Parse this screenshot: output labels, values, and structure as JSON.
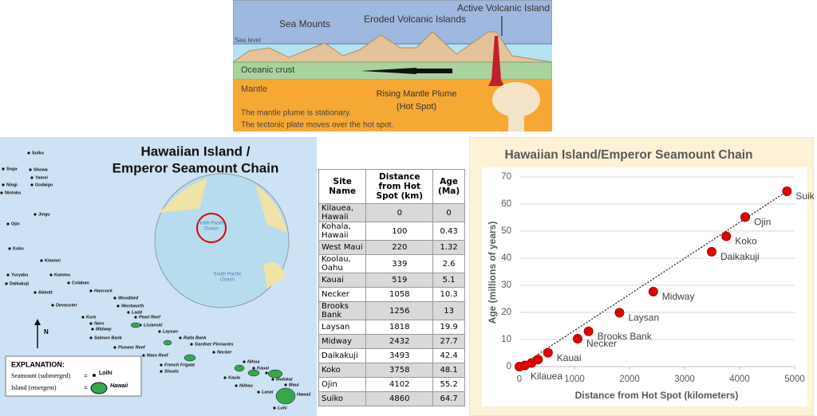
{
  "diagram": {
    "active_volcanic_island": "Active Volcanic Island",
    "sea_mounts": "Sea Mounts",
    "eroded_islands": "Eroded Volcanic Islands",
    "sea_level": "Sea level",
    "oceanic_crust": "Oceanic crust",
    "mantle": "Mantle",
    "plume": [
      "Rising Mantle Plume",
      "(Hot Spot)"
    ],
    "notes": [
      "The mantle plume is stationary.",
      "The tectonic plate moves over the hot spot."
    ]
  },
  "map": {
    "title": [
      "Hawaiian Island /",
      "Emperor Seamount Chain"
    ],
    "labels": [
      "Suiko",
      "Soga",
      "Showa",
      "Yamei",
      "Ningi",
      "Godaigo",
      "Nintoku",
      "Jingu",
      "Ojin",
      "Koko",
      "Kimmei",
      "Kammu",
      "Yuryaku",
      "Daikakuji",
      "Colahan",
      "Abbott",
      "Hancock",
      "Woodlard",
      "Wentworth",
      "Ladd",
      "Pearl Reef",
      "Kure",
      "Nero",
      "Lisianski",
      "Midway",
      "Salmon Bank",
      "Laysan",
      "Raita Bank",
      "Pioneer Reef",
      "Gardner Pinnacles",
      "Maro Reef",
      "Necker",
      "French Frigate",
      "Shoals",
      "Nihoa",
      "Kauai",
      "Oahu",
      "Kaula",
      "Niihau",
      "Molokai",
      "Maui",
      "Lanai",
      "Hawaii",
      "Lohi",
      "Deveuster"
    ],
    "north": "N",
    "globe_labels": [
      "North Pacific",
      "Ocean",
      "South Pacific",
      "Ocean"
    ],
    "explanation": {
      "title": "EXPLANATION:",
      "seamount": "Seamount (submerged)",
      "island": "Island (emergent)",
      "equals": "=",
      "seamount_example": "Loihi",
      "island_example": "Hawaii"
    }
  },
  "table": {
    "headers": [
      "Site Name",
      "Distance from Hot Spot (km)",
      "Age (Ma)"
    ],
    "rows": [
      [
        "Kilauea, Hawaii",
        "0",
        "0"
      ],
      [
        "Kohala, Hawaii",
        "100",
        "0.43"
      ],
      [
        "West Maui",
        "220",
        "1.32"
      ],
      [
        "Koolau, Oahu",
        "339",
        "2.6"
      ],
      [
        "Kauai",
        "519",
        "5.1"
      ],
      [
        "Necker",
        "1058",
        "10.3"
      ],
      [
        "Brooks Bank",
        "1256",
        "13"
      ],
      [
        "Laysan",
        "1818",
        "19.9"
      ],
      [
        "Midway",
        "2432",
        "27.7"
      ],
      [
        "Daikakuji",
        "3493",
        "42.4"
      ],
      [
        "Koko",
        "3758",
        "48.1"
      ],
      [
        "Ojin",
        "4102",
        "55.2"
      ],
      [
        "Suiko",
        "4860",
        "64.7"
      ]
    ]
  },
  "chart_data": {
    "type": "scatter",
    "title": "Hawaiian Island/Emperor Seamount Chain",
    "x_label": "Distance from Hot Spot (kilometers)",
    "y_label": "Age (millions of years)",
    "x": [
      0,
      100,
      220,
      339,
      519,
      1058,
      1256,
      1818,
      2432,
      3493,
      3758,
      4102,
      4860
    ],
    "values": [
      0,
      0.43,
      1.32,
      2.6,
      5.1,
      10.3,
      13,
      19.9,
      27.7,
      42.4,
      48.1,
      55.2,
      64.7
    ],
    "point_labels": [
      "Kilauea",
      null,
      null,
      null,
      "Kauai",
      "Necker",
      "Brooks Bank",
      "Laysan",
      "Midway",
      "Daikakuji",
      "Koko",
      "Ojin",
      "Suiko"
    ],
    "color": "#e00000",
    "xlim": [
      0,
      5000
    ],
    "xticks": [
      0,
      1000,
      2000,
      3000,
      4000,
      5000
    ],
    "ylim": [
      0,
      70
    ],
    "yticks": [
      0,
      10,
      20,
      30,
      40,
      50,
      60,
      70
    ],
    "grid": true,
    "trendline": true
  }
}
